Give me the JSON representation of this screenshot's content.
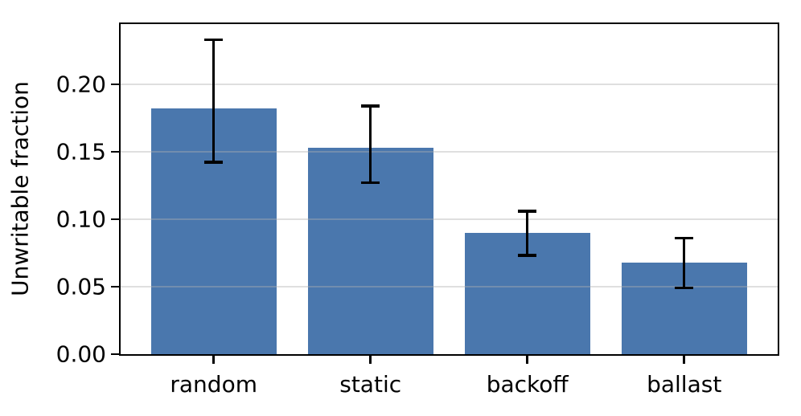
{
  "chart_data": {
    "type": "bar",
    "categories": [
      "random",
      "static",
      "backoff",
      "ballast"
    ],
    "values": [
      0.182,
      0.153,
      0.09,
      0.068
    ],
    "error_low": [
      0.142,
      0.127,
      0.073,
      0.049
    ],
    "error_high": [
      0.233,
      0.184,
      0.106,
      0.086
    ],
    "title": "",
    "xlabel": "",
    "ylabel": "Unwritable fraction",
    "yticks": [
      0,
      0.05,
      0.1,
      0.15,
      0.2
    ],
    "ytick_labels": [
      "0.00",
      "0.05",
      "0.10",
      "0.15",
      "0.20"
    ],
    "ylim": [
      0,
      0.2446
    ],
    "grid": true,
    "grid_on_top": true,
    "legend": false,
    "bar_color": "#4a77ad",
    "error_color": "#000000",
    "axis_color": "#000000",
    "grid_color": "rgba(176,176,176,0.4)"
  }
}
